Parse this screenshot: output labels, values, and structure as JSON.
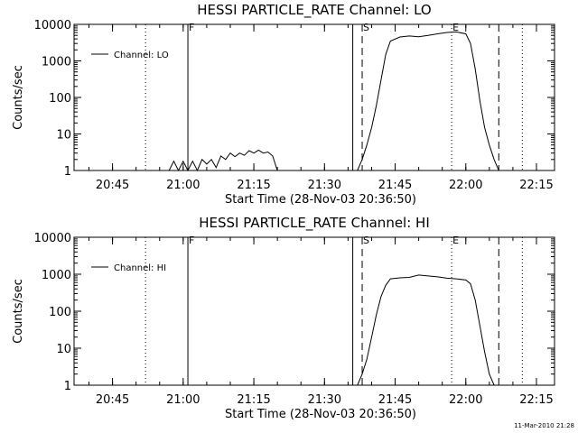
{
  "footer": "11-Mar-2010 21:28",
  "chart_data": [
    {
      "type": "line",
      "title": "HESSI PARTICLE_RATE Channel: LO",
      "xlabel": "Start Time (28-Nov-03 20:36:50)",
      "ylabel": "Counts/sec",
      "y_log": true,
      "xlim_minutes_after_start": [
        0,
        102
      ],
      "ylim": [
        1,
        10000
      ],
      "x_tick_labels": [
        "20:45",
        "21:00",
        "21:15",
        "21:30",
        "21:45",
        "22:00",
        "22:15"
      ],
      "y_tick_labels": [
        "1",
        "10",
        "100",
        "1000",
        "10000"
      ],
      "legend": "Channel: LO",
      "legend_position": "top-left",
      "markers": [
        {
          "label": "F",
          "time": "21:01",
          "style": "solid"
        },
        {
          "label": "",
          "time": "21:36",
          "style": "solid"
        },
        {
          "label": "S",
          "time": "21:38",
          "style": "dashed"
        },
        {
          "label": "E",
          "time": "21:57",
          "style": "dotted"
        },
        {
          "label": "",
          "time": "22:07",
          "style": "dashed"
        },
        {
          "label": "",
          "time": "22:12",
          "style": "dotted"
        },
        {
          "label": "",
          "time": "20:52",
          "style": "dotted"
        }
      ],
      "series": [
        {
          "name": "Channel: LO",
          "x": [
            "20:57",
            "20:58",
            "20:59",
            "21:00",
            "21:01",
            "21:02",
            "21:03",
            "21:04",
            "21:05",
            "21:06",
            "21:07",
            "21:08",
            "21:09",
            "21:10",
            "21:11",
            "21:12",
            "21:13",
            "21:14",
            "21:15",
            "21:16",
            "21:17",
            "21:18",
            "21:19",
            "21:20",
            "21:37",
            "21:38",
            "21:39",
            "21:40",
            "21:41",
            "21:42",
            "21:43",
            "21:44",
            "21:46",
            "21:48",
            "21:50",
            "21:52",
            "21:54",
            "21:56",
            "21:58",
            "22:00",
            "22:01",
            "22:02",
            "22:03",
            "22:04",
            "22:05",
            "22:06",
            "22:07",
            "22:08"
          ],
          "y": [
            1,
            1.8,
            1,
            1.8,
            1,
            1.8,
            1,
            2,
            1.5,
            2,
            1.2,
            2.5,
            2,
            3,
            2.4,
            3,
            2.6,
            3.5,
            3,
            3.6,
            3,
            3.2,
            2.5,
            1,
            1,
            2,
            5,
            15,
            60,
            300,
            1500,
            3500,
            4500,
            4800,
            4600,
            5000,
            5500,
            6000,
            6200,
            5500,
            3000,
            600,
            80,
            15,
            5,
            2,
            1,
            1
          ]
        }
      ]
    },
    {
      "type": "line",
      "title": "HESSI PARTICLE_RATE Channel: HI",
      "xlabel": "Start Time (28-Nov-03 20:36:50)",
      "ylabel": "Counts/sec",
      "y_log": true,
      "xlim_minutes_after_start": [
        0,
        102
      ],
      "ylim": [
        1,
        10000
      ],
      "x_tick_labels": [
        "20:45",
        "21:00",
        "21:15",
        "21:30",
        "21:45",
        "22:00",
        "22:15"
      ],
      "y_tick_labels": [
        "1",
        "10",
        "100",
        "1000",
        "10000"
      ],
      "legend": "Channel: HI",
      "legend_position": "top-left",
      "markers": [
        {
          "label": "F",
          "time": "21:01",
          "style": "solid"
        },
        {
          "label": "",
          "time": "21:36",
          "style": "solid"
        },
        {
          "label": "S",
          "time": "21:38",
          "style": "dashed"
        },
        {
          "label": "E",
          "time": "21:57",
          "style": "dotted"
        },
        {
          "label": "",
          "time": "22:07",
          "style": "dashed"
        },
        {
          "label": "",
          "time": "22:12",
          "style": "dotted"
        },
        {
          "label": "",
          "time": "20:52",
          "style": "dotted"
        }
      ],
      "series": [
        {
          "name": "Channel: HI",
          "x": [
            "21:37",
            "21:38",
            "21:39",
            "21:40",
            "21:41",
            "21:42",
            "21:43",
            "21:44",
            "21:46",
            "21:48",
            "21:50",
            "21:52",
            "21:54",
            "21:56",
            "21:58",
            "22:00",
            "22:01",
            "22:02",
            "22:03",
            "22:04",
            "22:05",
            "22:06"
          ],
          "y": [
            1,
            2,
            5,
            20,
            80,
            250,
            500,
            750,
            800,
            820,
            950,
            900,
            850,
            780,
            750,
            700,
            550,
            200,
            40,
            8,
            2,
            1
          ]
        }
      ]
    }
  ]
}
